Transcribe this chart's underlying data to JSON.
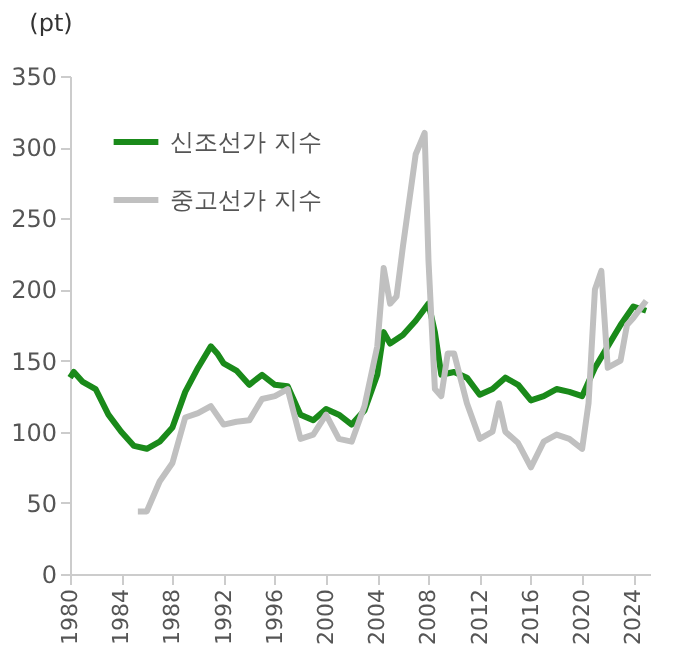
{
  "chart_data": {
    "type": "line",
    "ylabel": "(pt)",
    "xlim": [
      1980,
      2025.3
    ],
    "xticks": [
      1980,
      1984,
      1988,
      1992,
      1996,
      2000,
      2004,
      2008,
      2012,
      2016,
      2020,
      2024
    ],
    "ylim": [
      0,
      350
    ],
    "yticks": [
      0,
      50,
      100,
      150,
      200,
      250,
      300,
      350
    ],
    "grid": false,
    "legend": "top left",
    "marker": "none",
    "line_style": "solid",
    "series": [
      {
        "name": "신조선가 지수",
        "color": "#1a8a1a",
        "x": [
          1980,
          1980.3,
          1981,
          1982,
          1983,
          1984,
          1985,
          1986,
          1987,
          1988,
          1989,
          1990,
          1991,
          1991.5,
          1992,
          1993,
          1994,
          1995,
          1996,
          1997,
          1998,
          1999,
          2000,
          2001,
          2002,
          2003,
          2004,
          2004.5,
          2005,
          2006,
          2007,
          2008,
          2008.5,
          2009,
          2010,
          2011,
          2012,
          2013,
          2014,
          2015,
          2016,
          2017,
          2018,
          2019,
          2020,
          2021,
          2022,
          2023,
          2024,
          2025
        ],
        "values": [
          138,
          142,
          135,
          130,
          112,
          100,
          90,
          88,
          93,
          103,
          128,
          145,
          160,
          155,
          148,
          143,
          133,
          140,
          133,
          132,
          112,
          108,
          116,
          112,
          105,
          115,
          140,
          170,
          162,
          168,
          178,
          190,
          170,
          140,
          142,
          138,
          126,
          130,
          138,
          133,
          122,
          125,
          130,
          128,
          125,
          145,
          160,
          175,
          188,
          185
        ]
      },
      {
        "name": "중고선가 지수",
        "color": "#c0c0c0",
        "x": [
          1985.3,
          1986,
          1987,
          1988,
          1989,
          1990,
          1991,
          1992,
          1993,
          1994,
          1995,
          1996,
          1997,
          1998,
          1999,
          2000,
          2001,
          2002,
          2003,
          2004,
          2004.5,
          2005,
          2005.5,
          2006,
          2007,
          2007.7,
          2008,
          2008.5,
          2009,
          2009.5,
          2010,
          2011,
          2012,
          2013,
          2013.5,
          2014,
          2015,
          2016,
          2017,
          2018,
          2019,
          2020,
          2020.5,
          2021,
          2021.5,
          2022,
          2023,
          2023.5,
          2024,
          2025
        ],
        "values": [
          44,
          44,
          65,
          78,
          110,
          113,
          118,
          105,
          107,
          108,
          123,
          125,
          130,
          95,
          98,
          112,
          95,
          93,
          118,
          160,
          215,
          190,
          195,
          230,
          295,
          310,
          220,
          130,
          125,
          155,
          155,
          120,
          95,
          100,
          120,
          100,
          92,
          75,
          93,
          98,
          95,
          88,
          120,
          200,
          213,
          145,
          150,
          175,
          180,
          192
        ]
      }
    ]
  }
}
